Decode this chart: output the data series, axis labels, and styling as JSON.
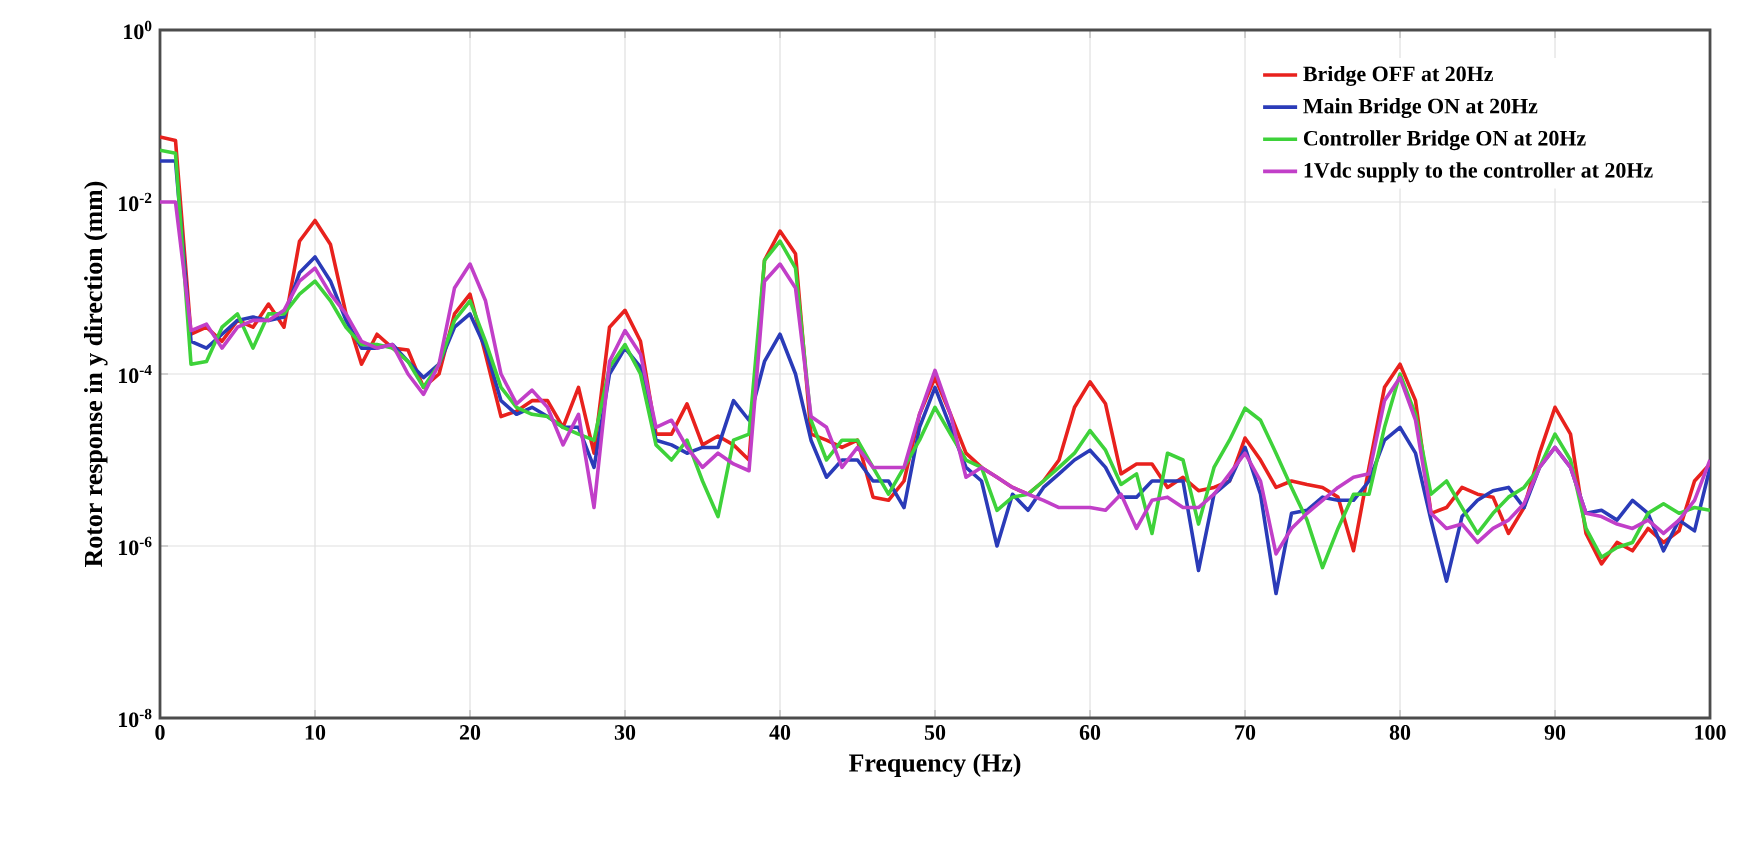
{
  "chart_data": {
    "type": "line",
    "xlabel": "Frequency (Hz)",
    "ylabel": "Rotor response in y direction (mm)",
    "log": "y",
    "grid": true,
    "legend": "top right",
    "xlim": [
      0,
      100
    ],
    "xticks": [
      0,
      10,
      20,
      30,
      40,
      50,
      60,
      70,
      80,
      90,
      100
    ],
    "ylim": [
      1e-08,
      1
    ],
    "yticks": [
      {
        "value": 1e-08,
        "label": "10$^{-8}$"
      },
      {
        "value": 1e-06,
        "label": "10$^{-6}$"
      },
      {
        "value": 0.0001,
        "label": "10$^{-4}$"
      },
      {
        "value": 0.01,
        "label": "10$^{-2}$"
      },
      {
        "value": 1,
        "label": "10$^{0}$"
      }
    ],
    "x": [
      0,
      1,
      2,
      3,
      4,
      5,
      6,
      7,
      8,
      9,
      10,
      11,
      12,
      13,
      14,
      15,
      16,
      17,
      18,
      19,
      20,
      21,
      22,
      23,
      24,
      25,
      26,
      27,
      28,
      29,
      30,
      31,
      32,
      33,
      34,
      35,
      36,
      37,
      38,
      39,
      40,
      41,
      42,
      43,
      44,
      45,
      46,
      47,
      48,
      49,
      50,
      51,
      52,
      53,
      54,
      55,
      56,
      57,
      58,
      59,
      60,
      61,
      62,
      63,
      64,
      65,
      66,
      67,
      68,
      69,
      70,
      71,
      72,
      73,
      74,
      75,
      76,
      77,
      78,
      79,
      80,
      81,
      82,
      83,
      84,
      85,
      86,
      87,
      88,
      89,
      90,
      91,
      92,
      93,
      94,
      95,
      96,
      97,
      98,
      99,
      100
    ],
    "series": [
      {
        "name": "Bridge OFF at 20Hz",
        "color": "#e8211d",
        "values": [
          0.057,
          0.052,
          0.00029,
          0.00035,
          0.00024,
          0.00042,
          0.00035,
          0.00065,
          0.00035,
          0.0035,
          0.0061,
          0.0032,
          0.0005,
          0.00013,
          0.00029,
          0.0002,
          0.00019,
          7e-05,
          0.0001,
          0.0005,
          0.00085,
          0.00017,
          3.2e-05,
          3.7e-05,
          4.9e-05,
          4.9e-05,
          2.4e-05,
          7e-05,
          1.2e-05,
          0.00035,
          0.00055,
          0.00024,
          2e-05,
          2e-05,
          4.5e-05,
          1.5e-05,
          1.9e-05,
          1.5e-05,
          1e-05,
          0.0021,
          0.0046,
          0.0025,
          2e-05,
          1.7e-05,
          1.4e-05,
          1.7e-05,
          3.7e-06,
          3.4e-06,
          5.7e-06,
          3.4e-05,
          9.1e-05,
          3.4e-05,
          1.2e-05,
          8.2e-06,
          6.3e-06,
          4.8e-06,
          4e-06,
          5.7e-06,
          1e-05,
          4.1e-05,
          8.1e-05,
          4.5e-05,
          6.9e-06,
          9e-06,
          9e-06,
          4.8e-06,
          6.3e-06,
          4.4e-06,
          4.8e-06,
          5.7e-06,
          1.8e-05,
          1e-05,
          4.8e-06,
          5.7e-06,
          5.2e-06,
          4.8e-06,
          3.7e-06,
          8.8e-07,
          8.2e-06,
          7e-05,
          0.00013,
          4.9e-05,
          2.4e-06,
          2.8e-06,
          4.8e-06,
          4e-06,
          3.7e-06,
          1.4e-06,
          2.8e-06,
          1.2e-05,
          4.1e-05,
          2e-05,
          1.4e-06,
          6.2e-07,
          1.1e-06,
          8.8e-07,
          1.6e-06,
          1.1e-06,
          1.5e-06,
          5.7e-06,
          9e-06
        ]
      },
      {
        "name": "Main Bridge ON at 20Hz",
        "color": "#2a3bb8",
        "values": [
          0.03,
          0.03,
          0.00024,
          0.0002,
          0.00029,
          0.00042,
          0.00046,
          0.00042,
          0.00046,
          0.0015,
          0.0023,
          0.0012,
          0.00042,
          0.0002,
          0.0002,
          0.00022,
          0.00014,
          9.1e-05,
          0.00013,
          0.00035,
          0.0005,
          0.0002,
          4.9e-05,
          3.4e-05,
          4.1e-05,
          3.2e-05,
          2.4e-05,
          2.4e-05,
          8.2e-06,
          0.0001,
          0.0002,
          0.00012,
          1.7e-05,
          1.5e-05,
          1.2e-05,
          1.4e-05,
          1.4e-05,
          4.9e-05,
          2.9e-05,
          0.00014,
          0.00029,
          0.0001,
          1.7e-05,
          6.3e-06,
          1e-05,
          1e-05,
          5.7e-06,
          5.7e-06,
          2.8e-06,
          2.4e-05,
          7e-05,
          2.4e-05,
          8.2e-06,
          5.7e-06,
          1e-06,
          4e-06,
          2.6e-06,
          4.8e-06,
          6.9e-06,
          1e-05,
          1.3e-05,
          8.2e-06,
          3.7e-06,
          3.7e-06,
          5.7e-06,
          5.7e-06,
          5.7e-06,
          5.2e-07,
          4e-06,
          5.7e-06,
          1.4e-05,
          4e-06,
          2.8e-07,
          2.4e-06,
          2.6e-06,
          3.7e-06,
          3.4e-06,
          3.4e-06,
          5.7e-06,
          1.7e-05,
          2.4e-05,
          1.2e-05,
          2e-06,
          3.9e-07,
          2.2e-06,
          3.4e-06,
          4.4e-06,
          4.8e-06,
          2.8e-06,
          8.2e-06,
          1.4e-05,
          8.2e-06,
          2.4e-06,
          2.6e-06,
          2e-06,
          3.4e-06,
          2.4e-06,
          8.8e-07,
          2e-06,
          1.5e-06,
          8.2e-06
        ]
      },
      {
        "name": "Controller Bridge ON at 20Hz",
        "color": "#3ed23a",
        "values": [
          0.04,
          0.037,
          0.00013,
          0.00014,
          0.00035,
          0.0005,
          0.0002,
          0.0005,
          0.0005,
          0.00085,
          0.0012,
          0.00071,
          0.00035,
          0.00022,
          0.00022,
          0.0002,
          0.00014,
          7e-05,
          0.00013,
          0.00042,
          0.00071,
          0.00024,
          7e-05,
          4.1e-05,
          3.4e-05,
          3.2e-05,
          2.4e-05,
          2e-05,
          1.7e-05,
          0.00012,
          0.00022,
          0.0001,
          1.5e-05,
          1e-05,
          1.7e-05,
          5.7e-06,
          2.2e-06,
          1.7e-05,
          2e-05,
          0.0021,
          0.0035,
          0.0017,
          2.9e-05,
          1e-05,
          1.7e-05,
          1.7e-05,
          8.2e-06,
          4e-06,
          8.2e-06,
          1.7e-05,
          4.1e-05,
          2e-05,
          1e-05,
          8.2e-06,
          2.6e-06,
          3.7e-06,
          4e-06,
          5.7e-06,
          8.2e-06,
          1.2e-05,
          2.2e-05,
          1.3e-05,
          5.2e-06,
          6.9e-06,
          1.4e-06,
          1.2e-05,
          1e-05,
          1.8e-06,
          8.2e-06,
          1.7e-05,
          4e-05,
          2.9e-05,
          1.2e-05,
          4.8e-06,
          2e-06,
          5.6e-07,
          1.6e-06,
          4e-06,
          4e-06,
          2.4e-05,
          0.0001,
          3.4e-05,
          4e-06,
          5.7e-06,
          2.8e-06,
          1.4e-06,
          2.4e-06,
          3.7e-06,
          4.8e-06,
          8.2e-06,
          2e-05,
          1e-05,
          1.6e-06,
          7.4e-07,
          9.6e-07,
          1.1e-06,
          2.4e-06,
          3.1e-06,
          2.4e-06,
          2.8e-06,
          2.6e-06
        ]
      },
      {
        "name": "1Vdc supply to the controller at 20Hz",
        "color": "#c13fc8",
        "values": [
          0.01,
          0.01,
          0.00032,
          0.00038,
          0.0002,
          0.00035,
          0.00042,
          0.00042,
          0.00055,
          0.0012,
          0.0017,
          0.00085,
          0.0005,
          0.00024,
          0.0002,
          0.00022,
          0.0001,
          5.8e-05,
          0.00013,
          0.001,
          0.0019,
          0.00071,
          0.0001,
          4.5e-05,
          6.5e-05,
          4.1e-05,
          1.5e-05,
          3.4e-05,
          2.8e-06,
          0.00014,
          0.00032,
          0.00017,
          2.4e-05,
          2.9e-05,
          1.4e-05,
          8.2e-06,
          1.2e-05,
          9e-06,
          7.5e-06,
          0.0012,
          0.0019,
          0.001,
          3.2e-05,
          2.4e-05,
          8.2e-06,
          1.4e-05,
          8.2e-06,
          8.2e-06,
          8.2e-06,
          3.4e-05,
          0.00011,
          3.4e-05,
          6.3e-06,
          8.2e-06,
          6.3e-06,
          4.8e-06,
          4e-06,
          3.4e-06,
          2.8e-06,
          2.8e-06,
          2.8e-06,
          2.6e-06,
          4e-06,
          1.6e-06,
          3.4e-06,
          3.7e-06,
          2.8e-06,
          2.8e-06,
          4e-06,
          6.9e-06,
          1.2e-05,
          5.7e-06,
          8.1e-07,
          1.6e-06,
          2.4e-06,
          3.4e-06,
          4.8e-06,
          6.3e-06,
          6.9e-06,
          4.9e-05,
          9.1e-05,
          2.9e-05,
          2.4e-06,
          1.6e-06,
          1.8e-06,
          1.1e-06,
          1.6e-06,
          2e-06,
          3.1e-06,
          8.2e-06,
          1.4e-05,
          8.2e-06,
          2.4e-06,
          2.2e-06,
          1.8e-06,
          1.6e-06,
          2e-06,
          1.4e-06,
          2e-06,
          3.4e-06,
          1e-05
        ]
      }
    ]
  }
}
